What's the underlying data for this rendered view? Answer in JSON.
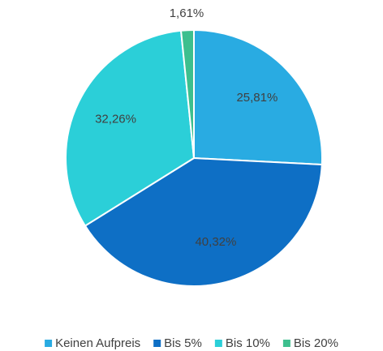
{
  "chart_data": {
    "type": "pie",
    "categories": [
      "Keinen Aufpreis",
      "Bis 5%",
      "Bis 10%",
      "Bis 20%"
    ],
    "values": [
      25.81,
      40.32,
      32.26,
      1.61
    ],
    "value_labels": [
      "25,81%",
      "40,32%",
      "32,26%",
      "1,61%"
    ],
    "colors": [
      "#29abe2",
      "#0e6fc5",
      "#2bcfd8",
      "#3dbf8e"
    ],
    "legend": "bottom"
  }
}
